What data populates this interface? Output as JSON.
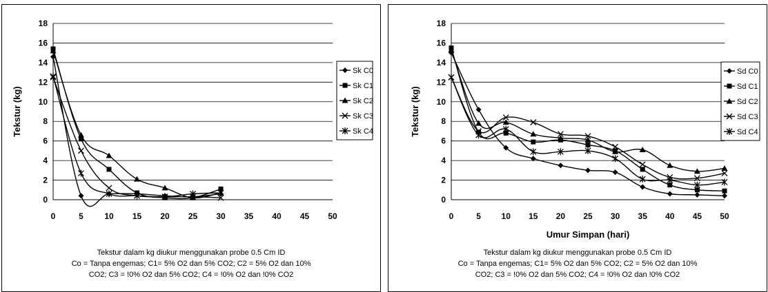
{
  "charts": [
    {
      "caption_lines": [
        "Tekstur dalam kg diukur menggunakan probe 0.5 Cm ID",
        "Co = Tanpa engemas; C1= 5% O2 dan 5% CO2; C2 = 5% O2 dan 10%",
        "CO2; C3 = !0% O2 dan 5% CO2; C4 = !0% O2 dan !0% CO2"
      ]
    },
    {
      "caption_lines": [
        "Tekstur dalam kg diukur menggunakan probe 0.5 Cm ID",
        "Co = Tanpa engemas; C1= 5% O2 dan 5% CO2; C2 = 5% O2 dan 10%",
        "CO2; C3 = !0% O2 dan 5% CO2; C4 = !0% O2 dan !0% CO2"
      ]
    }
  ],
  "chart_data": [
    {
      "type": "line",
      "title": "",
      "xlabel": "",
      "ylabel": "Tekstur (kg)",
      "xlim": [
        0,
        50
      ],
      "ylim": [
        0,
        18
      ],
      "x_ticks": [
        0,
        5,
        10,
        15,
        20,
        25,
        30,
        35,
        40,
        45,
        50
      ],
      "y_ticks": [
        0,
        2,
        4,
        6,
        8,
        10,
        12,
        14,
        16,
        18
      ],
      "grid": "horizontal",
      "legend_position": "right",
      "smooth": true,
      "x": [
        0,
        5,
        10,
        15,
        20,
        25,
        30
      ],
      "series": [
        {
          "name": "Sk C0",
          "marker": "diamond",
          "values": [
            14.6,
            0.4,
            0.6,
            0.6,
            0.4,
            0.3,
            0.6
          ]
        },
        {
          "name": "Sk C1",
          "marker": "square",
          "values": [
            15.4,
            6.2,
            3.1,
            0.7,
            0.2,
            0.2,
            1.1
          ]
        },
        {
          "name": "Sk C2",
          "marker": "triangle",
          "values": [
            15.2,
            6.6,
            4.5,
            2.1,
            1.2,
            0.2,
            0.7
          ]
        },
        {
          "name": "Sk C3",
          "marker": "x",
          "values": [
            12.5,
            5.0,
            1.2,
            0.4,
            0.3,
            0.3,
            0.2
          ]
        },
        {
          "name": "Sk C4",
          "marker": "star",
          "values": [
            12.6,
            2.7,
            0.6,
            0.4,
            0.3,
            0.6,
            0.7
          ]
        }
      ]
    },
    {
      "type": "line",
      "title": "",
      "xlabel": "Umur Simpan (hari)",
      "ylabel": "Tekstur (kg)",
      "xlim": [
        0,
        50
      ],
      "ylim": [
        0,
        18
      ],
      "x_ticks": [
        0,
        5,
        10,
        15,
        20,
        25,
        30,
        35,
        40,
        45,
        50
      ],
      "y_ticks": [
        0,
        2,
        4,
        6,
        8,
        10,
        12,
        14,
        16,
        18
      ],
      "grid": "horizontal",
      "legend_position": "right",
      "smooth": true,
      "x": [
        0,
        5,
        10,
        15,
        20,
        25,
        30,
        35,
        40,
        45,
        50
      ],
      "series": [
        {
          "name": "Sd C0",
          "marker": "diamond",
          "values": [
            15.0,
            9.2,
            5.3,
            4.2,
            3.5,
            3.0,
            2.8,
            1.3,
            0.6,
            0.5,
            0.4
          ]
        },
        {
          "name": "Sd C1",
          "marker": "square",
          "values": [
            15.5,
            6.9,
            6.8,
            5.9,
            6.1,
            5.6,
            5.0,
            3.1,
            1.5,
            1.0,
            0.9
          ]
        },
        {
          "name": "Sd C2",
          "marker": "triangle",
          "values": [
            15.3,
            7.8,
            7.9,
            6.7,
            6.3,
            6.1,
            4.9,
            5.1,
            3.5,
            2.9,
            3.2
          ]
        },
        {
          "name": "Sd C3",
          "marker": "x",
          "values": [
            12.5,
            7.0,
            8.4,
            7.9,
            6.7,
            6.5,
            5.4,
            3.6,
            2.3,
            2.2,
            2.7
          ]
        },
        {
          "name": "Sd C4",
          "marker": "star",
          "values": [
            12.5,
            6.6,
            7.2,
            4.9,
            4.9,
            5.0,
            4.2,
            2.1,
            2.0,
            1.5,
            1.8
          ]
        }
      ]
    }
  ]
}
